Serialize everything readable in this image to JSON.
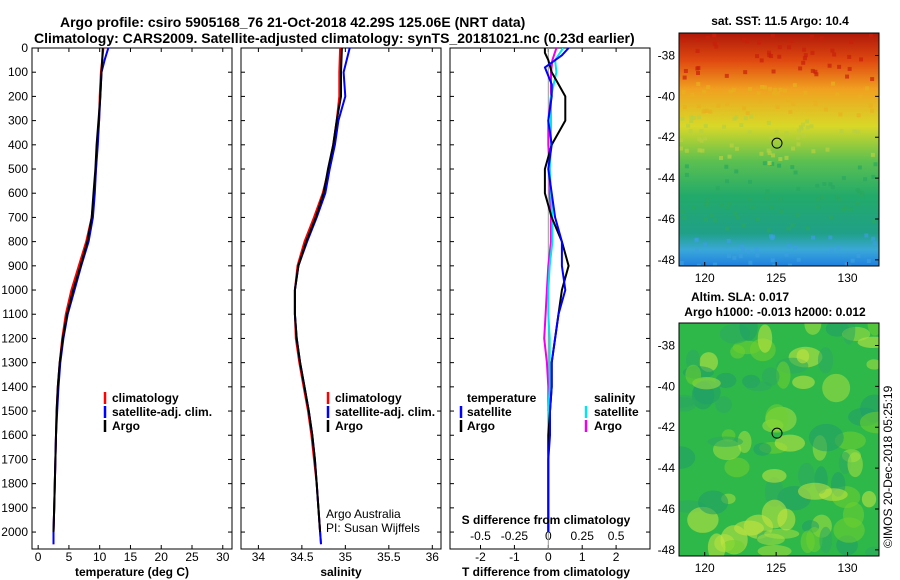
{
  "header": {
    "title_line1": "Argo profile: csiro 5905168_76 21-Oct-2018 42.29S 125.06E (NRT data)",
    "title_line2": "Climatology: CARS2009. Satellite-adjusted climatology: synTS_20181021.nc (0.23d earlier)"
  },
  "colors": {
    "climatology": "#ff0000",
    "satellite": "#0000ff",
    "argo": "#000000",
    "satellite_salinity": "#00e5ee",
    "argo_salinity": "#ee00ee"
  },
  "credit": {
    "line1": "Argo Australia",
    "line2": "PI: Susan Wijffels"
  },
  "watermark": "©IMOS 20-Dec-2018 05:25:19",
  "chart_data": [
    {
      "id": "temperature",
      "type": "line",
      "xlabel": "temperature (deg C)",
      "ylabel": "",
      "xlim": [
        -1,
        31.5
      ],
      "ylim": [
        2070,
        0
      ],
      "x_ticks": [
        0,
        5,
        10,
        15,
        20,
        25,
        30
      ],
      "y_ticks": [
        0,
        100,
        200,
        300,
        400,
        500,
        600,
        700,
        800,
        900,
        1000,
        1100,
        1200,
        1300,
        1400,
        1500,
        1600,
        1700,
        1800,
        1900,
        2000
      ],
      "legend": {
        "placement": "lower-right",
        "labels": [
          "climatology",
          "satellite-adj. clim.",
          "Argo"
        ]
      },
      "series": [
        {
          "name": "climatology",
          "depth": [
            0,
            50,
            100,
            200,
            300,
            400,
            500,
            600,
            700,
            800,
            900,
            1000,
            1100,
            1200,
            1300,
            1400,
            1500,
            1600,
            1700,
            1800,
            1900,
            2000,
            2050
          ],
          "values": [
            10.6,
            10.4,
            10.2,
            10.0,
            9.9,
            9.6,
            9.4,
            9.1,
            8.7,
            7.8,
            6.6,
            5.4,
            4.5,
            3.9,
            3.5,
            3.2,
            3.0,
            2.9,
            2.8,
            2.7,
            2.6,
            2.5,
            2.5
          ]
        },
        {
          "name": "satellite-adj. clim.",
          "depth": [
            0,
            50,
            100,
            200,
            300,
            400,
            500,
            600,
            700,
            800,
            900,
            1000,
            1100,
            1200,
            1300,
            1400,
            1500,
            1600,
            1700,
            1800,
            1900,
            2000,
            2050
          ],
          "values": [
            11.4,
            10.8,
            10.3,
            10.1,
            9.9,
            9.7,
            9.4,
            9.2,
            8.9,
            8.2,
            7.0,
            5.9,
            4.8,
            4.1,
            3.6,
            3.3,
            3.1,
            2.9,
            2.8,
            2.7,
            2.6,
            2.5,
            2.5
          ]
        },
        {
          "name": "Argo",
          "depth": [
            0,
            50,
            100,
            200,
            300,
            400,
            500,
            600,
            700,
            800,
            900,
            1000,
            1100,
            1200,
            1300,
            1400,
            1500,
            1600,
            1700,
            1800,
            1900,
            2000
          ],
          "values": [
            10.5,
            10.4,
            10.3,
            10.1,
            9.8,
            9.5,
            9.3,
            9.0,
            8.7,
            8.0,
            6.9,
            5.7,
            4.7,
            4.0,
            3.5,
            3.2,
            3.0,
            2.9,
            2.8,
            2.7,
            2.6,
            2.5
          ]
        }
      ]
    },
    {
      "id": "salinity",
      "type": "line",
      "xlabel": "salinity",
      "ylabel": "",
      "xlim": [
        33.8,
        36.1
      ],
      "ylim": [
        2070,
        0
      ],
      "x_ticks": [
        34,
        34.5,
        35,
        35.5,
        36
      ],
      "legend": {
        "placement": "lower-right",
        "labels": [
          "climatology",
          "satellite-adj. clim.",
          "Argo"
        ]
      },
      "series": [
        {
          "name": "climatology",
          "depth": [
            0,
            100,
            200,
            300,
            400,
            500,
            600,
            700,
            800,
            900,
            1000,
            1100,
            1200,
            1300,
            1400,
            1500,
            1600,
            1700,
            1800,
            1900,
            2000,
            2050
          ],
          "values": [
            34.94,
            34.93,
            34.93,
            34.9,
            34.86,
            34.81,
            34.74,
            34.64,
            34.53,
            34.45,
            34.42,
            34.42,
            34.43,
            34.47,
            34.52,
            34.57,
            34.61,
            34.64,
            34.67,
            34.69,
            34.71,
            34.72
          ]
        },
        {
          "name": "satellite-adj. clim.",
          "depth": [
            0,
            100,
            200,
            300,
            400,
            500,
            600,
            700,
            800,
            900,
            1000,
            1100,
            1200,
            1300,
            1400,
            1500,
            1600,
            1700,
            1800,
            1900,
            2000,
            2050
          ],
          "values": [
            35.05,
            34.98,
            35.0,
            34.92,
            34.88,
            34.82,
            34.77,
            34.67,
            34.56,
            34.46,
            34.42,
            34.42,
            34.44,
            34.48,
            34.53,
            34.58,
            34.62,
            34.65,
            34.67,
            34.69,
            34.71,
            34.72
          ]
        },
        {
          "name": "Argo",
          "depth": [
            0,
            100,
            200,
            300,
            400,
            500,
            600,
            700,
            800,
            900,
            1000,
            1100,
            1200,
            1300,
            1400,
            1500,
            1600,
            1700,
            1800,
            1900,
            2000
          ],
          "values": [
            34.96,
            34.95,
            34.95,
            34.9,
            34.86,
            34.8,
            34.75,
            34.66,
            34.55,
            34.46,
            34.42,
            34.42,
            34.44,
            34.48,
            34.53,
            34.58,
            34.62,
            34.65,
            34.67,
            34.69,
            34.71
          ]
        }
      ]
    },
    {
      "id": "difference",
      "type": "line",
      "xlabel": "T difference from climatology",
      "top_axis_label": "S difference from climatology",
      "xlim": [
        -2.9,
        3.0
      ],
      "ylim": [
        2070,
        0
      ],
      "x_ticks": [
        -2,
        -1,
        0,
        1,
        2
      ],
      "top_ticks": [
        -0.5,
        -0.25,
        0,
        0.25,
        0.5
      ],
      "top_tick_labels": [
        "-0.5",
        "-0.25",
        "0",
        "0.25",
        "0.5"
      ],
      "legend": {
        "placement": "lower",
        "temperature_heading": "temperature",
        "salinity_heading": "salinity",
        "labels": [
          "satellite",
          "Argo"
        ]
      },
      "series": [
        {
          "name": "temperature satellite",
          "depth": [
            0,
            30,
            80,
            150,
            200,
            300,
            400,
            500,
            600,
            700,
            800,
            900,
            1000,
            1100,
            1200,
            1300,
            1400,
            1500,
            1600,
            1700,
            1800,
            1900,
            2000
          ],
          "values": [
            0.6,
            0.4,
            -0.1,
            0.1,
            0.1,
            0.0,
            0.1,
            0.0,
            0.1,
            0.2,
            0.4,
            0.4,
            0.5,
            0.3,
            0.2,
            0.1,
            0.1,
            0.05,
            0.05,
            0.0,
            0.0,
            0.0,
            0.0
          ]
        },
        {
          "name": "temperature Argo",
          "depth": [
            0,
            20,
            50,
            100,
            150,
            200,
            300,
            400,
            500,
            600,
            700,
            800,
            900,
            1000,
            1100,
            1200,
            1300,
            1400,
            1500,
            1600,
            1700,
            1800,
            1900,
            2000
          ],
          "values": [
            -0.1,
            -0.1,
            0.0,
            0.1,
            0.3,
            0.5,
            0.5,
            0.1,
            -0.1,
            -0.1,
            0.1,
            0.4,
            0.6,
            0.4,
            0.3,
            0.2,
            0.1,
            0.1,
            0.05,
            0.0,
            0.0,
            0.0,
            0.0,
            0.0
          ]
        },
        {
          "name": "salinity satellite",
          "depth": [
            0,
            50,
            100,
            200,
            300,
            400,
            500,
            600,
            700,
            800,
            900,
            1000,
            1100,
            1200,
            1300,
            1400,
            1500,
            1600,
            1700,
            1800,
            1900,
            2000
          ],
          "values": [
            0.11,
            0.05,
            0.06,
            0.02,
            0.02,
            0.02,
            0.01,
            0.02,
            0.03,
            0.03,
            0.01,
            0.0,
            0.0,
            0.01,
            0.01,
            0.01,
            0.0,
            0.0,
            0.0,
            0.0,
            0.0,
            0.0
          ]
        },
        {
          "name": "salinity Argo",
          "depth": [
            0,
            50,
            100,
            200,
            300,
            400,
            500,
            600,
            700,
            800,
            900,
            1000,
            1100,
            1200,
            1300,
            1400,
            1500
          ],
          "values": [
            0.06,
            0.03,
            0.02,
            0.02,
            0.0,
            0.0,
            0.01,
            0.01,
            0.02,
            0.02,
            0.0,
            -0.01,
            -0.02,
            -0.03,
            -0.01,
            0.0,
            0.0
          ]
        }
      ]
    },
    {
      "id": "sst_map",
      "type": "heatmap",
      "title": "sat. SST: 11.5 Argo: 10.4",
      "x_ticks": [
        120,
        125,
        130
      ],
      "y_ticks": [
        -38,
        -40,
        -42,
        -44,
        -46,
        -48
      ],
      "xlim": [
        118.2,
        132.2
      ],
      "ylim": [
        -48.3,
        -36.9
      ],
      "marker": {
        "lon": 125.06,
        "lat": -42.29
      }
    },
    {
      "id": "sla_map",
      "type": "heatmap",
      "title_line1": "Altim. SLA: 0.017",
      "title_line2": "Argo h1000: -0.013 h2000: 0.012",
      "x_ticks": [
        120,
        125,
        130
      ],
      "y_ticks": [
        -38,
        -40,
        -42,
        -44,
        -46,
        -48
      ],
      "xlim": [
        118.2,
        132.2
      ],
      "ylim": [
        -48.3,
        -36.9
      ],
      "marker": {
        "lon": 125.06,
        "lat": -42.29
      }
    }
  ]
}
